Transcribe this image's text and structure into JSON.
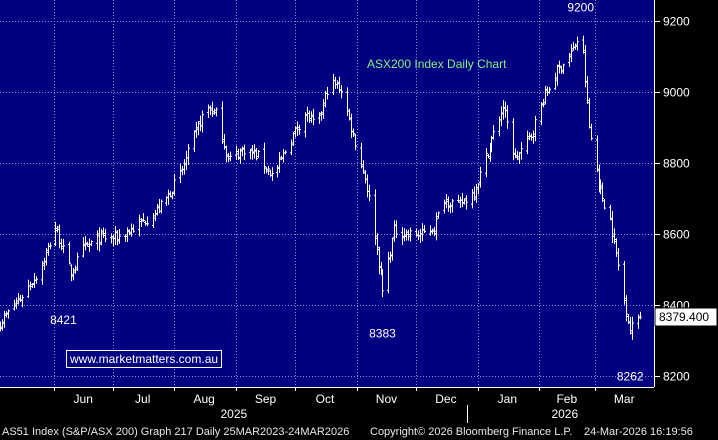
{
  "chart_data": {
    "type": "ohlc",
    "title": "ASX200 Index Daily Chart",
    "colors": {
      "background": "#000080",
      "bars": "#ffffff",
      "title": "#7ff27f",
      "gridlines": "#8a8ac0"
    },
    "grid": true,
    "legend": "none",
    "ylim": [
      8170,
      9260
    ],
    "y_ticks": [
      8200,
      8400,
      8600,
      8800,
      9000,
      9200
    ],
    "y_tick_labels": [
      "8200",
      "8400",
      "8600",
      "8800",
      "9000",
      "9200"
    ],
    "x_range": [
      "2025-05-05",
      "2026-03-31"
    ],
    "x_months": [
      {
        "label": "Jun",
        "date": "2025-06-16"
      },
      {
        "label": "Jul",
        "date": "2025-07-16"
      },
      {
        "label": "Aug",
        "date": "2025-08-16"
      },
      {
        "label": "Sep",
        "date": "2025-09-16"
      },
      {
        "label": "Oct",
        "date": "2025-10-16"
      },
      {
        "label": "Nov",
        "date": "2025-11-16"
      },
      {
        "label": "Dec",
        "date": "2025-12-16"
      },
      {
        "label": "Jan",
        "date": "2026-01-16"
      },
      {
        "label": "Feb",
        "date": "2026-02-15"
      },
      {
        "label": "Mar",
        "date": "2026-03-16"
      }
    ],
    "x_years": [
      {
        "label": "2025",
        "date": "2025-08-31"
      },
      {
        "label": "2026",
        "date": "2026-02-14"
      }
    ],
    "annotations": [
      {
        "text": "8421",
        "date": "2025-06-06",
        "value": 8421
      },
      {
        "text": "8383",
        "date": "2025-11-14",
        "value": 8383
      },
      {
        "text": "9200",
        "date": "2026-02-22",
        "value": 9200
      },
      {
        "text": "8262",
        "date": "2026-03-19",
        "value": 8262
      }
    ],
    "last_value": "8379.400",
    "series": [
      {
        "close_path": [
          [
            "2025-05-05",
            8350
          ],
          [
            "2025-05-15",
            8420
          ],
          [
            "2025-05-25",
            8500
          ],
          [
            "2025-06-02",
            8620
          ],
          [
            "2025-06-10",
            8490
          ],
          [
            "2025-06-16",
            8560
          ],
          [
            "2025-06-25",
            8590
          ],
          [
            "2025-07-03",
            8590
          ],
          [
            "2025-07-12",
            8620
          ],
          [
            "2025-07-22",
            8660
          ],
          [
            "2025-07-28",
            8700
          ],
          [
            "2025-08-05",
            8780
          ],
          [
            "2025-08-10",
            8860
          ],
          [
            "2025-08-17",
            8960
          ],
          [
            "2025-08-22",
            8940
          ],
          [
            "2025-08-28",
            8810
          ],
          [
            "2025-09-05",
            8840
          ],
          [
            "2025-09-12",
            8820
          ],
          [
            "2025-09-20",
            8760
          ],
          [
            "2025-09-28",
            8860
          ],
          [
            "2025-10-06",
            8940
          ],
          [
            "2025-10-12",
            8900
          ],
          [
            "2025-10-18",
            9030
          ],
          [
            "2025-10-24",
            9010
          ],
          [
            "2025-10-30",
            8880
          ],
          [
            "2025-11-05",
            8760
          ],
          [
            "2025-11-09",
            8640
          ],
          [
            "2025-11-14",
            8440
          ],
          [
            "2025-11-20",
            8610
          ],
          [
            "2025-11-28",
            8600
          ],
          [
            "2025-12-04",
            8600
          ],
          [
            "2025-12-10",
            8620
          ],
          [
            "2025-12-15",
            8700
          ],
          [
            "2025-12-22",
            8680
          ],
          [
            "2025-12-30",
            8720
          ],
          [
            "2026-01-07",
            8850
          ],
          [
            "2026-01-14",
            8960
          ],
          [
            "2026-01-20",
            8810
          ],
          [
            "2026-01-28",
            8880
          ],
          [
            "2026-02-03",
            8980
          ],
          [
            "2026-02-10",
            9060
          ],
          [
            "2026-02-18",
            9120
          ],
          [
            "2026-02-22",
            9170
          ],
          [
            "2026-02-26",
            8900
          ],
          [
            "2026-03-04",
            8720
          ],
          [
            "2026-03-09",
            8640
          ],
          [
            "2026-03-14",
            8480
          ],
          [
            "2026-03-19",
            8330
          ],
          [
            "2026-03-24",
            8379.4
          ]
        ]
      }
    ]
  },
  "footer": {
    "left": "AS51 Index (S&P/ASX 200) Graph 217 Daily 25MAR2023-24MAR2026",
    "middle": "Copyright© 2026 Bloomberg Finance L.P.",
    "right": "24-Mar-2026 16:19:56"
  },
  "watermark": "www.marketmatters.com.au"
}
